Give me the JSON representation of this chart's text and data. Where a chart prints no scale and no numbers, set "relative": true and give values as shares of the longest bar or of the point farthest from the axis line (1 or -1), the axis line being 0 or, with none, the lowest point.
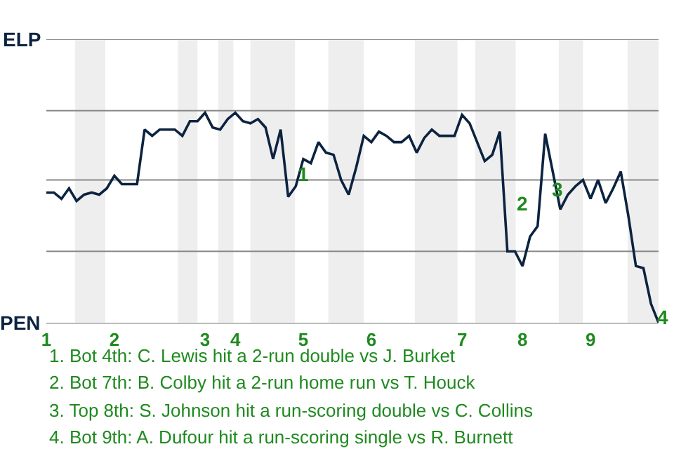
{
  "chart_data": {
    "type": "line",
    "relative": true,
    "categories": [
      "1",
      null,
      null,
      null,
      null,
      null,
      null,
      null,
      null,
      "2",
      null,
      null,
      null,
      null,
      null,
      null,
      null,
      null,
      null,
      null,
      null,
      "3",
      null,
      null,
      null,
      "4",
      null,
      null,
      null,
      null,
      null,
      null,
      null,
      null,
      "5",
      null,
      null,
      null,
      null,
      null,
      null,
      null,
      null,
      "6",
      null,
      null,
      null,
      null,
      null,
      null,
      null,
      null,
      null,
      null,
      null,
      "7",
      null,
      null,
      null,
      null,
      null,
      null,
      null,
      "8",
      null,
      null,
      null,
      null,
      null,
      null,
      null,
      null,
      "9",
      null,
      null,
      null,
      null,
      null,
      null,
      null,
      null,
      null
    ],
    "marker": "none",
    "ref_lines": [
      {
        "axis": "y",
        "value": 0.34,
        "color": "#888888"
      },
      {
        "axis": "y",
        "value": 0.68,
        "color": "#888888"
      },
      {
        "axis": "y",
        "value": 1.01,
        "color": "#888888"
      },
      {
        "axis": "y",
        "value": 1.35,
        "color": "#888888"
      }
    ],
    "series": [
      {
        "color": "#0c2340",
        "values": [
          0.62,
          0.62,
          0.59,
          0.64,
          0.58,
          0.61,
          0.62,
          0.61,
          0.64,
          0.7,
          0.66,
          0.66,
          0.66,
          0.92,
          0.89,
          0.92,
          0.92,
          0.92,
          0.89,
          0.96,
          0.96,
          1,
          0.93,
          0.92,
          0.97,
          1,
          0.96,
          0.95,
          0.97,
          0.93,
          0.78,
          0.92,
          0.6,
          0.65,
          0.78,
          0.76,
          0.86,
          0.81,
          0.8,
          0.68,
          0.61,
          0.74,
          0.89,
          0.86,
          0.91,
          0.89,
          0.86,
          0.86,
          0.89,
          0.81,
          0.88,
          0.92,
          0.89,
          0.89,
          0.89,
          0.99,
          0.95,
          0.86,
          0.77,
          0.8,
          0.91,
          0.34,
          0.34,
          0.27,
          0.41,
          0.46,
          0.9,
          0.72,
          0.54,
          0.61,
          0.65,
          0.68,
          0.59,
          0.68,
          0.57,
          0.64,
          0.72,
          0.51,
          0.27,
          0.26,
          0.09,
          0
        ]
      }
    ],
    "annotations": [
      "ELP",
      "PEN",
      "1",
      "2",
      "3",
      "4",
      "1. Bot 4th: C. Lewis hit a 2-run double vs J. Burket",
      "2. Bot 7th: B. Colby hit a 2-run home run vs T. Houck",
      "3. Top 8th: S. Johnson hit a run-scoring double vs C. Collins",
      "4. Bot 9th: A. Dufour hit a run-scoring single vs R. Burnett"
    ]
  }
}
